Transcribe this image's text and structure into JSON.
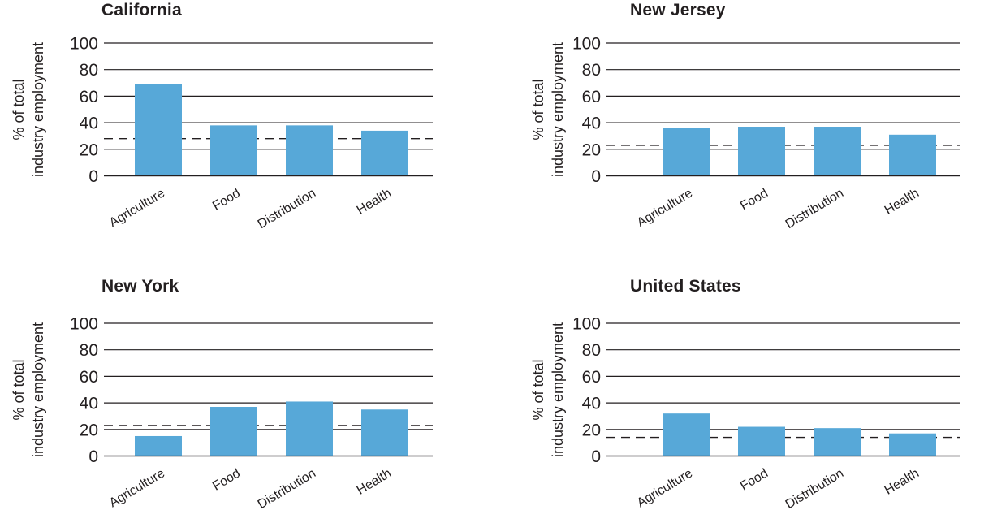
{
  "figure_title": "",
  "ylabel_lines": [
    "% of total",
    "industry employment"
  ],
  "colors": {
    "bar": "#57a8d8",
    "line": "#231f20",
    "text": "#231f20"
  },
  "chart_data": [
    {
      "type": "bar",
      "title": "California",
      "categories": [
        "Agriculture",
        "Food",
        "Distribution",
        "Health"
      ],
      "values": [
        69,
        38,
        38,
        34
      ],
      "dashed_reference_line": 28,
      "xlabel": "",
      "ylabel": "% of total industry employment",
      "yticks": [
        0,
        20,
        40,
        60,
        80,
        100
      ],
      "ylim": [
        0,
        100
      ],
      "grid": true,
      "legend": false
    },
    {
      "type": "bar",
      "title": "New Jersey",
      "categories": [
        "Agriculture",
        "Food",
        "Distribution",
        "Health"
      ],
      "values": [
        36,
        37,
        37,
        31
      ],
      "dashed_reference_line": 23,
      "xlabel": "",
      "ylabel": "% of total industry employment",
      "yticks": [
        0,
        20,
        40,
        60,
        80,
        100
      ],
      "ylim": [
        0,
        100
      ],
      "grid": true,
      "legend": false
    },
    {
      "type": "bar",
      "title": "New York",
      "categories": [
        "Agriculture",
        "Food",
        "Distribution",
        "Health"
      ],
      "values": [
        15,
        37,
        41,
        35
      ],
      "dashed_reference_line": 23,
      "xlabel": "",
      "ylabel": "% of total industry employment",
      "yticks": [
        0,
        20,
        40,
        60,
        80,
        100
      ],
      "ylim": [
        0,
        100
      ],
      "grid": true,
      "legend": false
    },
    {
      "type": "bar",
      "title": "United States",
      "categories": [
        "Agriculture",
        "Food",
        "Distribution",
        "Health"
      ],
      "values": [
        32,
        22,
        21,
        17
      ],
      "dashed_reference_line": 14,
      "xlabel": "",
      "ylabel": "% of total industry employment",
      "yticks": [
        0,
        20,
        40,
        60,
        80,
        100
      ],
      "ylim": [
        0,
        100
      ],
      "grid": true,
      "legend": false
    }
  ]
}
